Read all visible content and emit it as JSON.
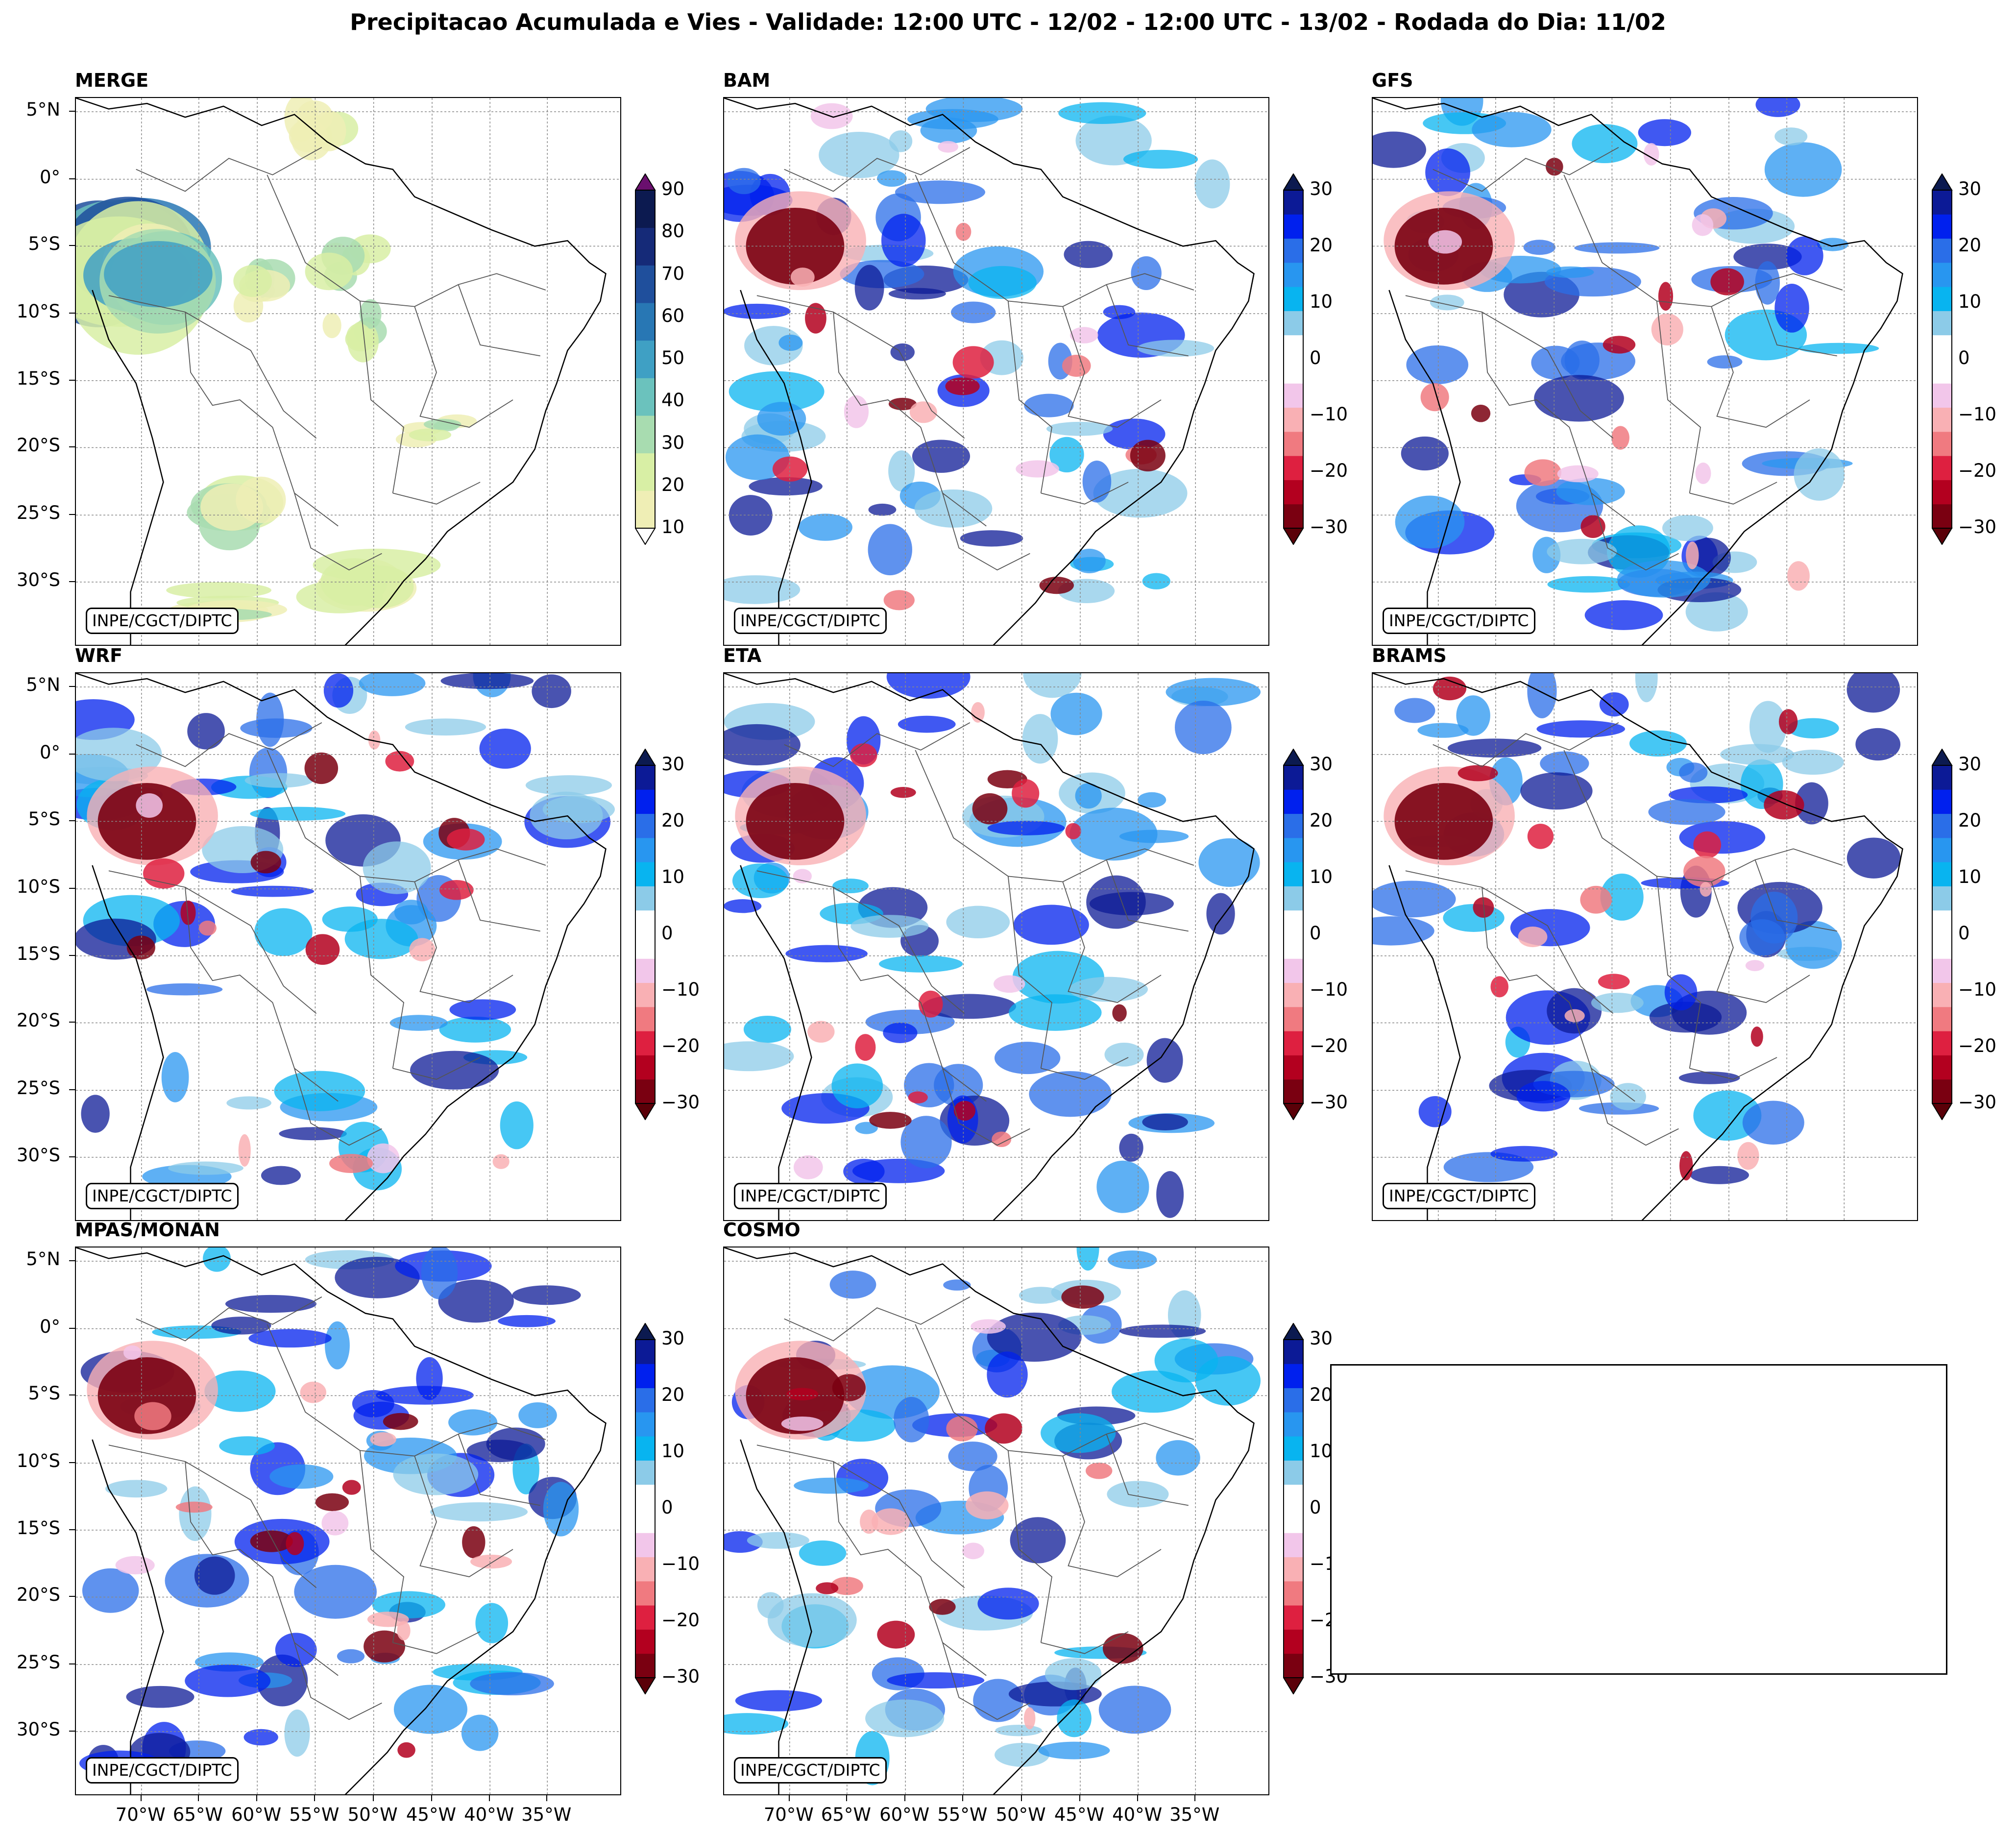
{
  "title": "Precipitacao Acumulada e Vies - Validade: 12:00 UTC - 12/02 - 12:00 UTC - 13/02 - Rodada do Dia: 11/02",
  "credit": "INPE/CGCT/DIPTC",
  "lat_labels": [
    "5°N",
    "0°",
    "5°S",
    "10°S",
    "15°S",
    "20°S",
    "25°S",
    "30°S"
  ],
  "lon_labels": [
    "70°W",
    "65°W",
    "60°W",
    "55°W",
    "50°W",
    "45°W",
    "40°W",
    "35°W"
  ],
  "panels": [
    {
      "name": "MERGE",
      "type": "precip"
    },
    {
      "name": "BAM",
      "type": "bias"
    },
    {
      "name": "GFS",
      "type": "bias"
    },
    {
      "name": "WRF",
      "type": "bias"
    },
    {
      "name": "ETA",
      "type": "bias"
    },
    {
      "name": "BRAMS",
      "type": "bias"
    },
    {
      "name": "MPAS/MONAN",
      "type": "bias"
    },
    {
      "name": "COSMO",
      "type": "bias"
    }
  ],
  "precip_colorbar": {
    "ticks": [
      "90",
      "80",
      "70",
      "60",
      "50",
      "40",
      "30",
      "20",
      "10"
    ],
    "colors": [
      "#efeeb5",
      "#d8efa5",
      "#a8dcb0",
      "#6bc2bd",
      "#3fa0c4",
      "#2877b4",
      "#1f4f9c",
      "#152a78",
      "#0c1a50"
    ],
    "over_color": "#6a0f6e"
  },
  "bias_colorbar": {
    "ticks": [
      "30",
      "20",
      "10",
      "0",
      "−10",
      "−20",
      "−30"
    ],
    "colors": [
      "#7a0011",
      "#b3001f",
      "#de2040",
      "#f07a80",
      "#f9b0b4",
      "#f2c6ea",
      "#ffffff",
      "#ffffff",
      "#8ccbe8",
      "#08b4f0",
      "#2896f0",
      "#2a6ee8",
      "#0020ee",
      "#0c1a96"
    ],
    "under_color": "#5a0008",
    "over_color": "#0c1a50"
  }
}
